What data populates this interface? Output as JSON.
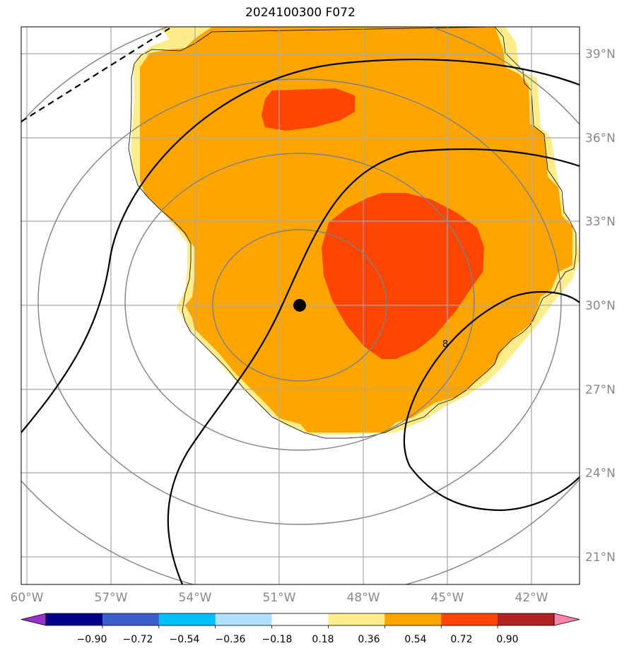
{
  "title": "2024100300 F072",
  "map": {
    "lon_labels": [
      "60°W",
      "57°W",
      "54°W",
      "51°W",
      "48°W",
      "45°W",
      "42°W"
    ],
    "lat_labels": [
      "39°N",
      "36°N",
      "33°N",
      "30°N",
      "27°N",
      "24°N",
      "21°N"
    ],
    "extent": {
      "lon": [
        -60.0,
        -40.3
      ],
      "lat": [
        19.8,
        39.9
      ]
    },
    "storm_center": {
      "lon": -50.2,
      "lat": 30.0
    },
    "contour_label": "8",
    "grid_color": "#a9a9a9",
    "range_ring_color": "#808080"
  },
  "colorbar": {
    "tick_labels": [
      "−0.90",
      "−0.72",
      "−0.54",
      "−0.36",
      "−0.18",
      "0.18",
      "0.36",
      "0.54",
      "0.72",
      "0.90"
    ],
    "colors": [
      "#9932cc",
      "#00008b",
      "#3a5fcd",
      "#00bfff",
      "#b0e2ff",
      "#ffffff",
      "#ffec8b",
      "#ffa500",
      "#ff4500",
      "#b22222",
      "#ff82ab"
    ]
  }
}
